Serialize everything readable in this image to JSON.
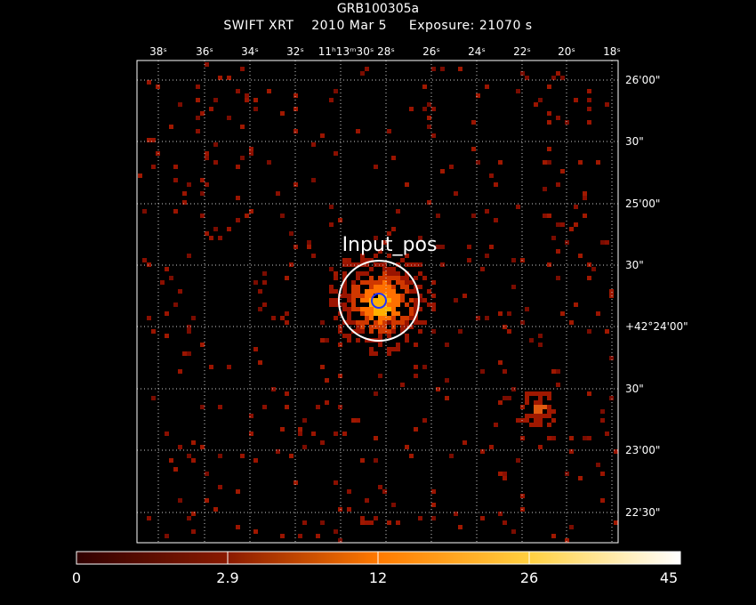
{
  "header": {
    "object": "GRB100305a",
    "instrument": "SWIFT XRT",
    "date": "2010 Mar  5",
    "exposure": "Exposure: 21070 s"
  },
  "axes": {
    "ra_ticks": [
      "38ˢ",
      "36ˢ",
      "34ˢ",
      "32ˢ",
      "11ʰ13ᵐ30ˢ",
      "28ˢ",
      "26ˢ",
      "24ˢ",
      "22ˢ",
      "20ˢ",
      "18ˢ"
    ],
    "dec_ticks": [
      "26'00\"",
      "30\"",
      "25'00\"",
      "30\"",
      "+42°24'00\"",
      "30\"",
      "23'00\"",
      "22'30\""
    ],
    "grid": true
  },
  "source_region": {
    "label": "Input_pos",
    "outer_circle_color": "#ffffff",
    "inner_circle_color": "#2233ff"
  },
  "colorbar": {
    "labels": [
      "0",
      "2.9",
      "12",
      "26",
      "45"
    ],
    "colormap": "heat"
  }
}
